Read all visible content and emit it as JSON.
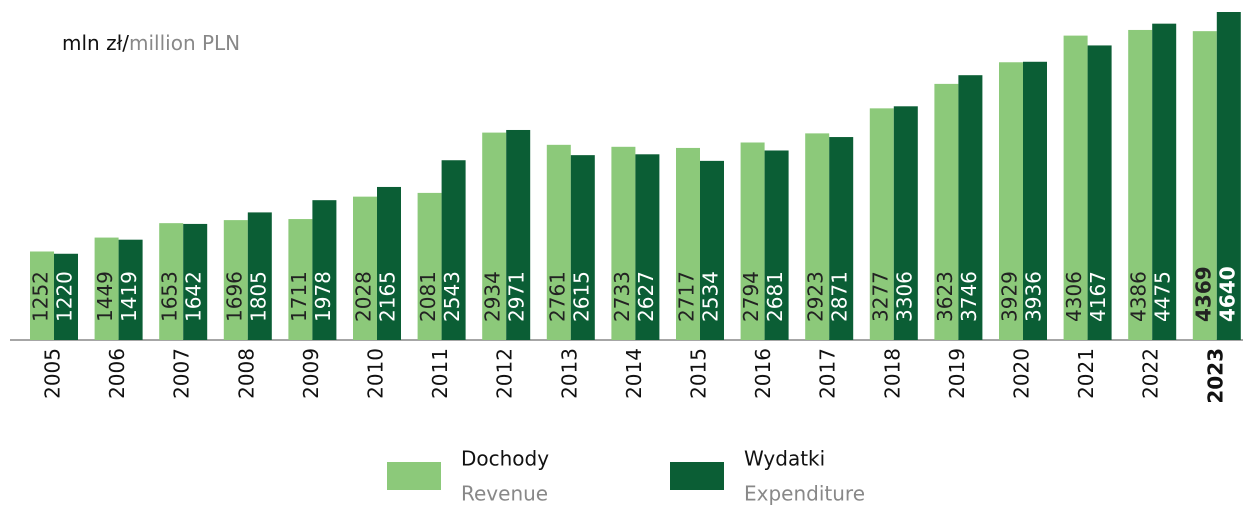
{
  "chart_data": {
    "type": "bar",
    "unit_label": {
      "local": "mln zł/",
      "english": "million PLN"
    },
    "categories": [
      "2005",
      "2006",
      "2007",
      "2008",
      "2009",
      "2010",
      "2011",
      "2012",
      "2013",
      "2014",
      "2015",
      "2016",
      "2017",
      "2018",
      "2019",
      "2020",
      "2021",
      "2022",
      "2023"
    ],
    "highlight_category": "2023",
    "series": [
      {
        "name": "Dochody",
        "name_en": "Revenue",
        "color": "#8cc97a",
        "label_color": "#222222",
        "values": [
          1252,
          1449,
          1653,
          1696,
          1711,
          2028,
          2081,
          2934,
          2761,
          2733,
          2717,
          2794,
          2923,
          3277,
          3623,
          3929,
          4306,
          4386,
          4369
        ]
      },
      {
        "name": "Wydatki",
        "name_en": "Expenditure",
        "color": "#0b5e35",
        "label_color": "#ffffff",
        "values": [
          1220,
          1419,
          1642,
          1805,
          1978,
          2165,
          2543,
          2971,
          2615,
          2627,
          2534,
          2681,
          2871,
          3306,
          3746,
          3936,
          4167,
          4475,
          4640
        ]
      }
    ]
  }
}
